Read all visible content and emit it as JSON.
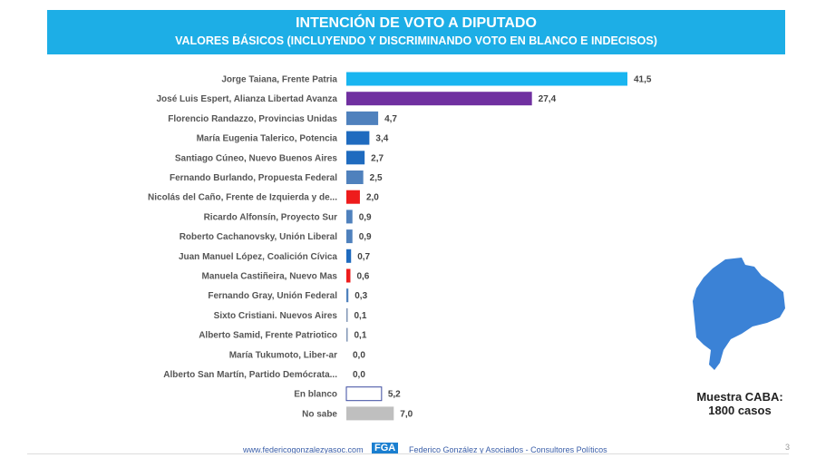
{
  "chart_data": {
    "type": "bar",
    "orientation": "horizontal",
    "title": "INTENCIÓN DE VOTO A DIPUTADO",
    "subtitle": "VALORES BÁSICOS (INCLUYENDO Y DISCRIMINANDO VOTO EN BLANCO E INDECISOS)",
    "categories": [
      "Jorge Taiana, Frente Patria",
      "José Luis Espert, Alianza Libertad Avanza",
      "Florencio Randazzo, Provincias Unidas",
      "María Eugenia Talerico, Potencia",
      "Santiago Cúneo, Nuevo Buenos Aires",
      "Fernando Burlando, Propuesta Federal",
      "Nicolás del Caño, Frente de Izquierda y de...",
      "Ricardo Alfonsín, Proyecto Sur",
      "Roberto Cachanovsky, Unión Liberal",
      "Juan Manuel López, Coalición Cívica",
      "Manuela Castiñeira, Nuevo Mas",
      "Fernando Gray, Unión Federal",
      "Sixto Cristiani. Nuevos Aires",
      "Alberto Samid, Frente Patriotico",
      "María Tukumoto, Liber-ar",
      "Alberto San Martín, Partido Demócrata...",
      "En blanco",
      "No sabe"
    ],
    "values": [
      41.5,
      27.4,
      4.7,
      3.4,
      2.7,
      2.5,
      2.0,
      0.9,
      0.9,
      0.7,
      0.6,
      0.3,
      0.1,
      0.1,
      0.0,
      0.0,
      5.2,
      7.0
    ],
    "labels": [
      "41,5",
      "27,4",
      "4,7",
      "3,4",
      "2,7",
      "2,5",
      "2,0",
      "0,9",
      "0,9",
      "0,7",
      "0,6",
      "0,3",
      "0,1",
      "0,1",
      "0,0",
      "0,0",
      "5,2",
      "7,0"
    ],
    "colors": [
      "#19b5f0",
      "#7030a0",
      "#4f81bd",
      "#1f6bbf",
      "#1f6bbf",
      "#4f81bd",
      "#ee1c1c",
      "#4f81bd",
      "#4f81bd",
      "#1f6bbf",
      "#ee1c1c",
      "#4f81bd",
      "#8095b5",
      "#8095b5",
      "#4f81bd",
      "#4f81bd",
      "#ffffff",
      "#bfbfbf"
    ],
    "xlim": [
      0,
      41.5
    ],
    "grid": false
  },
  "sample": {
    "line1": "Muestra CABA:",
    "line2": "1800 casos",
    "map_color": "#3b82d6"
  },
  "footer": {
    "url": "www.federicogonzalezyasoc.com",
    "logo": "FGA",
    "firm": "Federico González y Asociados - Consultores Políticos",
    "page": "3"
  }
}
